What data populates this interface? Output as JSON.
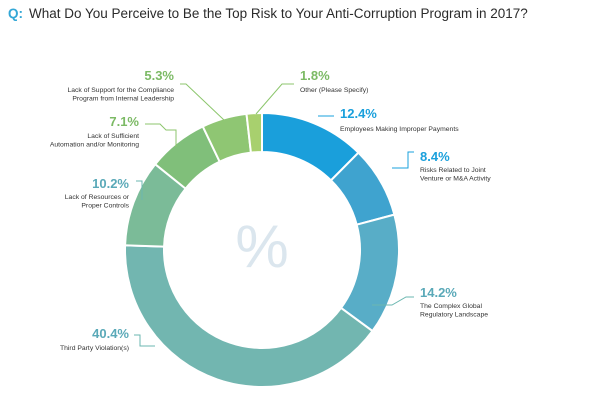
{
  "title": {
    "prefix": "Q:",
    "text": "What Do You Perceive to Be the Top Risk to Your Anti-Corruption Program in 2017?"
  },
  "center_symbol": "%",
  "colors": {
    "title_prefix": "#33a7d6",
    "percent_blue": "#1aa0dc",
    "percent_teal": "#5aa9b8",
    "percent_green": "#7cba65",
    "leader_blue": "#1aa0dc",
    "leader_teal": "#6bb7b0",
    "leader_green": "#8cc66c"
  },
  "chart_data": {
    "type": "pie",
    "title": "What Do You Perceive to Be the Top Risk to Your Anti-Corruption Program in 2017?",
    "donut": true,
    "units": "%",
    "slices": [
      {
        "label": "Employees Making Improper Payments",
        "value": 12.4,
        "display": "12.4%",
        "lines": [
          "Employees Making Improper Payments"
        ],
        "color": "#1a9fdb",
        "tone": "blue"
      },
      {
        "label": "Risks Related to Joint Venture or M&A Activity",
        "value": 8.4,
        "display": "8.4%",
        "lines": [
          "Risks Related to Joint",
          "Venture or M&A Activity"
        ],
        "color": "#3fa3cf",
        "tone": "blue"
      },
      {
        "label": "The Complex Global Regulatory Landscape",
        "value": 14.2,
        "display": "14.2%",
        "lines": [
          "The Complex Global",
          "Regulatory Landscape"
        ],
        "color": "#58adc7",
        "tone": "teal"
      },
      {
        "label": "Third Party Violation(s)",
        "value": 40.4,
        "display": "40.4%",
        "lines": [
          "Third Party Violation(s)"
        ],
        "color": "#72b6b0",
        "tone": "teal"
      },
      {
        "label": "Lack of Resources or Proper Controls",
        "value": 10.2,
        "display": "10.2%",
        "lines": [
          "Lack of Resources or",
          "Proper Controls"
        ],
        "color": "#7bbb98",
        "tone": "teal"
      },
      {
        "label": "Lack of Sufficient Automation and/or Monitoring",
        "value": 7.1,
        "display": "7.1%",
        "lines": [
          "Lack of Sufficient",
          "Automation and/or Monitoring"
        ],
        "color": "#80bf7a",
        "tone": "green"
      },
      {
        "label": "Lack of Support for the Compliance Program from Internal Leadership",
        "value": 5.3,
        "display": "5.3%",
        "lines": [
          "Lack of Support for the Compliance",
          "Program from Internal Leadership"
        ],
        "color": "#8fc673",
        "tone": "green"
      },
      {
        "label": "Other (Please Specify)",
        "value": 1.8,
        "display": "1.8%",
        "lines": [
          "Other (Please Specify)"
        ],
        "color": "#a8d06e",
        "tone": "green"
      }
    ]
  }
}
